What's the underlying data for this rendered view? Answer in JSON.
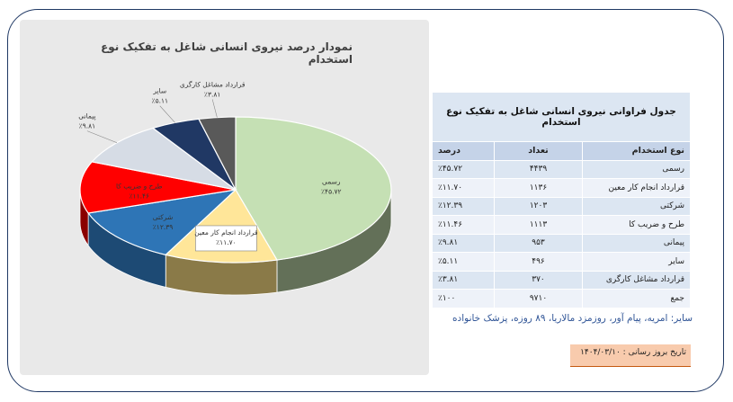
{
  "chart_title": "نمودار درصد نیروی انسانی شاغل به تفکیک نوع استخدام",
  "chart_data": {
    "type": "pie",
    "title": "نمودار درصد نیروی انسانی شاغل به تفکیک نوع استخدام",
    "categories": [
      "رسمی",
      "قرارداد انجام کار معین",
      "شرکتی",
      "طرح و ضریب کا",
      "پیمانی",
      "سایر",
      "قرارداد مشاغل کارگری"
    ],
    "values": [
      45.72,
      11.7,
      12.39,
      11.46,
      9.81,
      5.11,
      3.81
    ],
    "value_labels": [
      "٪۴۵.۷۲",
      "٪۱۱.۷۰",
      "٪۱۲.۳۹",
      "٪۱۱.۴۶",
      "٪۹.۸۱",
      "٪۵.۱۱",
      "٪۳.۸۱"
    ],
    "colors": [
      "#c5e0b4",
      "#ffe699",
      "#2e75b6",
      "#ff0000",
      "#d6dce5",
      "#203864",
      "#595959"
    ],
    "dark_colors": [
      "#637058",
      "#8a7a48",
      "#1d4a74",
      "#8a0000",
      "#8c939c",
      "#101c33",
      "#303030"
    ]
  },
  "table": {
    "title": "جدول فراوانی نیروی انسانی شاغل به تفکیک نوع استخدام",
    "headers": [
      "نوع استخدام",
      "تعداد",
      "درصد"
    ],
    "rows": [
      [
        "رسمی",
        "۴۴۳۹",
        "٪۴۵.۷۲"
      ],
      [
        "قرارداد انجام کار معین",
        "۱۱۳۶",
        "٪۱۱.۷۰"
      ],
      [
        "شرکتی",
        "۱۲۰۳",
        "٪۱۲.۳۹"
      ],
      [
        "طرح و ضریب کا",
        "۱۱۱۳",
        "٪۱۱.۴۶"
      ],
      [
        "پیمانی",
        "۹۵۳",
        "٪۹.۸۱"
      ],
      [
        "سایر",
        "۴۹۶",
        "٪۵.۱۱"
      ],
      [
        "قرارداد مشاغل کارگری",
        "۳۷۰",
        "٪۳.۸۱"
      ],
      [
        "جمع",
        "۹۷۱۰",
        "٪۱۰۰"
      ]
    ]
  },
  "note": "سایر: امریه، پیام آور، روزمزد مالاریا، ۸۹ روزه، پزشک خانواده",
  "date_label": "تاریخ بروز رسانی : ۱۴۰۴/۰۳/۱۰"
}
